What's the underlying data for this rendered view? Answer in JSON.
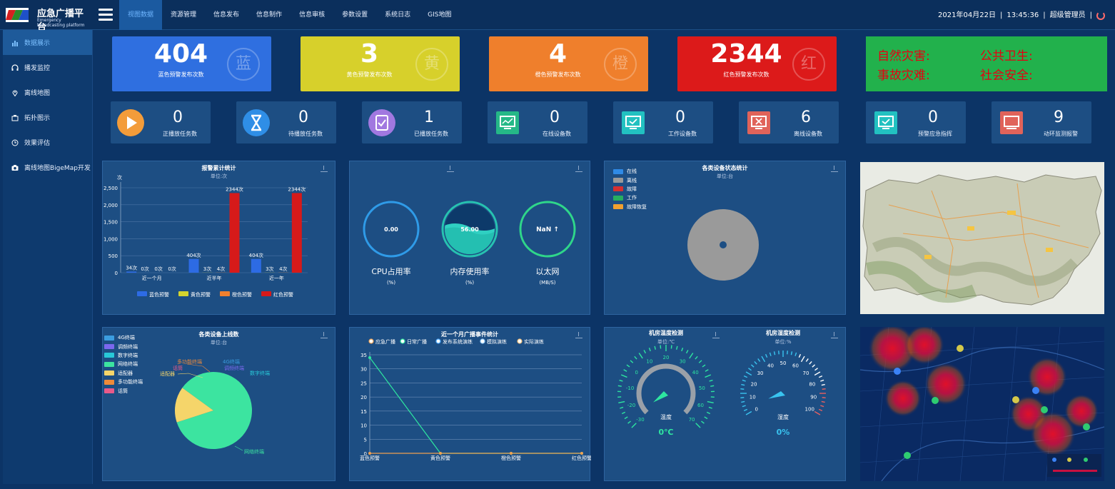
{
  "header": {
    "logo_title": "应急广播平台",
    "logo_sub": "Emergency broadcasting platform",
    "nav": [
      "视图数据",
      "资源管理",
      "信息发布",
      "信息制作",
      "信息审核",
      "参数设置",
      "系统日志",
      "GIS地图"
    ],
    "date": "2021年04月22日",
    "time": "13:45:36",
    "user": "超级管理员",
    "separator": "|"
  },
  "sidebar": {
    "items": [
      "数据展示",
      "播发监控",
      "离线地图",
      "拓扑图示",
      "效果评估",
      "离线地图BigeMap开发"
    ]
  },
  "stats": [
    {
      "value": "404",
      "label": "蓝色预警发布次数",
      "badge": "蓝",
      "color": "#2f6fe0"
    },
    {
      "value": "3",
      "label": "黄色预警发布次数",
      "badge": "黄",
      "color": "#d7d02b"
    },
    {
      "value": "4",
      "label": "橙色预警发布次数",
      "badge": "橙",
      "color": "#ef7f2c"
    },
    {
      "value": "2344",
      "label": "红色预警发布次数",
      "badge": "红",
      "color": "#dc1a1a"
    }
  ],
  "disaster": {
    "natural": "自然灾害:",
    "health": "公共卫生:",
    "accident": "事故灾难:",
    "safety": "社会安全:"
  },
  "tasks": [
    {
      "value": "0",
      "label": "正播放任务数",
      "icon": "play-icon"
    },
    {
      "value": "0",
      "label": "待播放任务数",
      "icon": "hourglass-icon"
    },
    {
      "value": "1",
      "label": "已播放任务数",
      "icon": "clipboard-icon"
    },
    {
      "value": "0",
      "label": "在线设备数",
      "icon": "monitor-chart-icon"
    },
    {
      "value": "0",
      "label": "工作设备数",
      "icon": "monitor-check-icon"
    },
    {
      "value": "6",
      "label": "离线设备数",
      "icon": "monitor-x-icon"
    },
    {
      "value": "0",
      "label": "预警应急指挥",
      "icon": "monitor-check-icon"
    },
    {
      "value": "9",
      "label": "动环监测报警",
      "icon": "monitor-icon"
    }
  ],
  "alarm_panel": {
    "title": "报警累计统计",
    "unit": "单位:次",
    "yunit": "次"
  },
  "perf": {
    "cpu": {
      "value": "0.00",
      "label": "CPU占用率",
      "unit": "(%)"
    },
    "mem": {
      "value": "56.00",
      "label": "内存使用率",
      "unit": "(%)"
    },
    "net": {
      "value": "NaN ↑",
      "label": "以太网",
      "unit": "(MB/S)"
    }
  },
  "status_panel": {
    "title": "各类设备状态统计",
    "unit": "单位:台"
  },
  "online_panel": {
    "title": "各类设备上线数",
    "unit": "单位:台"
  },
  "event_panel": {
    "title": "近一个月广播事件统计"
  },
  "temp": {
    "title": "机房温度检测",
    "unit": "单位:℃",
    "gauge_label": "温度",
    "value": "0℃"
  },
  "humid": {
    "title": "机房湿度检测",
    "unit": "单位:%",
    "gauge_label": "湿度",
    "value": "0%"
  },
  "colors": {
    "bg": "#0c3466",
    "panel": "#1d4e83",
    "accent": "#1b5aa0"
  },
  "chart_data": [
    {
      "type": "bar",
      "categories": [
        "近一个月",
        "近半年",
        "近一年"
      ],
      "series": [
        {
          "name": "蓝色预警",
          "values": [
            34,
            404,
            404
          ],
          "labels": [
            "34次",
            "404次",
            "404次"
          ],
          "color": "#2d6be4"
        },
        {
          "name": "黄色预警",
          "values": [
            0,
            3,
            3
          ],
          "labels": [
            "0次",
            "3次",
            "3次"
          ],
          "color": "#d4d42e"
        },
        {
          "name": "橙色预警",
          "values": [
            0,
            4,
            4
          ],
          "labels": [
            "0次",
            "4次",
            "4次"
          ],
          "color": "#f0802e"
        },
        {
          "name": "红色预警",
          "values": [
            0,
            2344,
            2344
          ],
          "labels": [
            "0次",
            "2344次",
            "2344次"
          ],
          "color": "#d61a1a"
        }
      ],
      "yticks": [
        "0",
        "500",
        "1,000",
        "1,500",
        "2,000",
        "2,500"
      ],
      "ylim": [
        0,
        2500
      ]
    },
    {
      "type": "pie",
      "legend": [
        {
          "name": "在线",
          "color": "#2f8ae6"
        },
        {
          "name": "离线",
          "color": "#9a9a9a"
        },
        {
          "name": "故障",
          "color": "#d63030"
        },
        {
          "name": "工作",
          "color": "#27ae60"
        },
        {
          "name": "故障恢复",
          "color": "#f0a030"
        }
      ],
      "slices": [
        {
          "name": "离线",
          "value": 6
        }
      ]
    },
    {
      "type": "pie",
      "legend": [
        {
          "name": "4G终端",
          "color": "#3b9de0"
        },
        {
          "name": "调频终端",
          "color": "#7b68ee"
        },
        {
          "name": "数字终端",
          "color": "#28c8d8"
        },
        {
          "name": "网络终端",
          "color": "#3ce4a0"
        },
        {
          "name": "适配器",
          "color": "#f5d56a"
        },
        {
          "name": "多功能终端",
          "color": "#ef8a3a"
        },
        {
          "name": "话筒",
          "color": "#e85a8a"
        }
      ],
      "slices": [
        {
          "name": "网络终端",
          "value": 85
        },
        {
          "name": "适配器",
          "value": 15
        }
      ],
      "labels": [
        "多功能终端",
        "适配器",
        "话筒",
        "4G终端",
        "调频终端",
        "数字终端",
        "网络终端"
      ]
    },
    {
      "type": "line",
      "categories": [
        "蓝色预警",
        "黄色预警",
        "橙色预警",
        "红色预警"
      ],
      "legend": [
        "应急广播",
        "日常广播",
        "发布系统演练",
        "模拟演练",
        "实际演练"
      ],
      "series": [
        {
          "name": "日常广播",
          "values": [
            34,
            0,
            0,
            0
          ],
          "color": "#2ee6a0"
        },
        {
          "name": "应急广播",
          "values": [
            0,
            0,
            0,
            0
          ],
          "color": "#f0a050"
        }
      ],
      "yticks": [
        "0",
        "5",
        "10",
        "15",
        "20",
        "25",
        "30",
        "35"
      ],
      "ylim": [
        0,
        35
      ]
    }
  ]
}
